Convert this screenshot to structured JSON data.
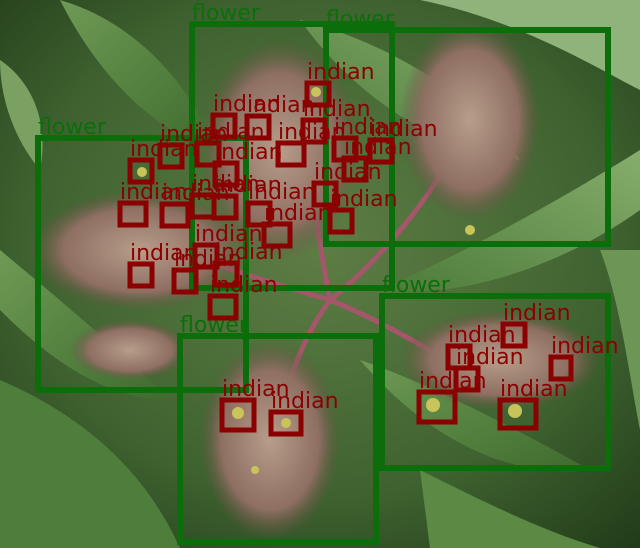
{
  "colors": {
    "flower_box": "#0b6e0b",
    "indian_box": "#8b0000"
  },
  "detections": [
    {
      "label": "flower",
      "class": "flower"
    },
    {
      "label": "flower",
      "class": "flower"
    },
    {
      "label": "flower",
      "class": "flower"
    },
    {
      "label": "flower",
      "class": "flower"
    },
    {
      "label": "flower",
      "class": "flower"
    },
    {
      "label": "indian",
      "class": "indian"
    },
    {
      "label": "indian",
      "class": "indian"
    },
    {
      "label": "indian",
      "class": "indian"
    },
    {
      "label": "indian",
      "class": "indian"
    },
    {
      "label": "indian",
      "class": "indian"
    },
    {
      "label": "indian",
      "class": "indian"
    },
    {
      "label": "indian",
      "class": "indian"
    },
    {
      "label": "indian",
      "class": "indian"
    },
    {
      "label": "indian",
      "class": "indian"
    },
    {
      "label": "indian",
      "class": "indian"
    },
    {
      "label": "indian",
      "class": "indian"
    },
    {
      "label": "indian",
      "class": "indian"
    },
    {
      "label": "indian",
      "class": "indian"
    },
    {
      "label": "indian",
      "class": "indian"
    },
    {
      "label": "indian",
      "class": "indian"
    },
    {
      "label": "indian",
      "class": "indian"
    },
    {
      "label": "indian",
      "class": "indian"
    },
    {
      "label": "indian",
      "class": "indian"
    },
    {
      "label": "indian",
      "class": "indian"
    },
    {
      "label": "indian",
      "class": "indian"
    },
    {
      "label": "indian",
      "class": "indian"
    },
    {
      "label": "indian",
      "class": "indian"
    },
    {
      "label": "indian",
      "class": "indian"
    },
    {
      "label": "indian",
      "class": "indian"
    },
    {
      "label": "indian",
      "class": "indian"
    },
    {
      "label": "indian",
      "class": "indian"
    },
    {
      "label": "indian",
      "class": "indian"
    },
    {
      "label": "indian",
      "class": "indian"
    },
    {
      "label": "indian",
      "class": "indian"
    },
    {
      "label": "indian",
      "class": "indian"
    },
    {
      "label": "indian",
      "class": "indian"
    },
    {
      "label": "indian",
      "class": "indian"
    },
    {
      "label": "indian",
      "class": "indian"
    }
  ]
}
